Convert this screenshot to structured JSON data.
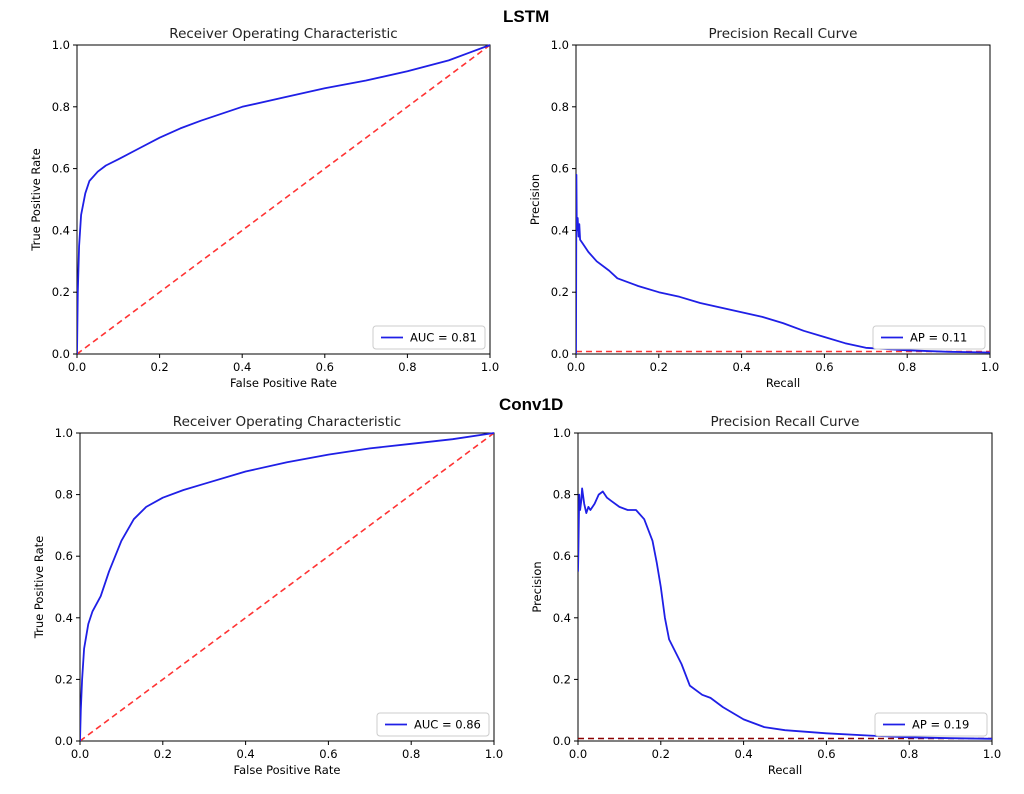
{
  "sections": [
    {
      "title": "LSTM"
    },
    {
      "title": "Conv1D"
    }
  ],
  "chart_data": [
    {
      "type": "line",
      "title": "Receiver Operating Characteristic",
      "xlabel": "False Positive Rate",
      "ylabel": "True Positive Rate",
      "xlim": [
        0,
        1
      ],
      "ylim": [
        0,
        1
      ],
      "xticks": [
        "0.0",
        "0.2",
        "0.4",
        "0.6",
        "0.8",
        "1.0"
      ],
      "yticks": [
        "0.0",
        "0.2",
        "0.4",
        "0.6",
        "0.8",
        "1.0"
      ],
      "legend": {
        "location": "lower-right",
        "entries": [
          "AUC = 0.81"
        ]
      },
      "series": [
        {
          "name": "AUC = 0.81",
          "color": "#1f1fe6",
          "style": "solid",
          "x": [
            0,
            0.002,
            0.005,
            0.01,
            0.02,
            0.03,
            0.05,
            0.07,
            0.1,
            0.15,
            0.2,
            0.25,
            0.3,
            0.4,
            0.5,
            0.6,
            0.7,
            0.8,
            0.9,
            0.95,
            1.0
          ],
          "y": [
            0,
            0.2,
            0.35,
            0.45,
            0.52,
            0.56,
            0.59,
            0.61,
            0.63,
            0.665,
            0.7,
            0.73,
            0.755,
            0.8,
            0.83,
            0.86,
            0.885,
            0.915,
            0.95,
            0.975,
            1.0
          ]
        },
        {
          "name": "chance",
          "color": "#ff3333",
          "style": "dashed",
          "x": [
            0,
            1
          ],
          "y": [
            0,
            1
          ]
        }
      ]
    },
    {
      "type": "line",
      "title": "Precision Recall Curve",
      "xlabel": "Recall",
      "ylabel": "Precision",
      "xlim": [
        0,
        1
      ],
      "ylim": [
        0,
        1
      ],
      "xticks": [
        "0.0",
        "0.2",
        "0.4",
        "0.6",
        "0.8",
        "1.0"
      ],
      "yticks": [
        "0.0",
        "0.2",
        "0.4",
        "0.6",
        "0.8",
        "1.0"
      ],
      "legend": {
        "location": "lower-right",
        "entries": [
          "AP = 0.11"
        ]
      },
      "series": [
        {
          "name": "AP = 0.11",
          "color": "#1f1fe6",
          "style": "solid",
          "x": [
            0,
            0.001,
            0.002,
            0.004,
            0.006,
            0.008,
            0.01,
            0.015,
            0.02,
            0.03,
            0.05,
            0.08,
            0.1,
            0.15,
            0.2,
            0.25,
            0.3,
            0.35,
            0.4,
            0.45,
            0.5,
            0.55,
            0.6,
            0.65,
            0.7,
            0.8,
            0.9,
            1.0
          ],
          "y": [
            0,
            0.58,
            0.4,
            0.44,
            0.38,
            0.42,
            0.37,
            0.36,
            0.35,
            0.33,
            0.3,
            0.27,
            0.245,
            0.22,
            0.2,
            0.185,
            0.165,
            0.15,
            0.135,
            0.12,
            0.1,
            0.075,
            0.055,
            0.035,
            0.02,
            0.012,
            0.007,
            0.005
          ]
        },
        {
          "name": "baseline",
          "color": "#ff3333",
          "style": "dashed",
          "x": [
            0,
            1
          ],
          "y": [
            0.008,
            0.008
          ]
        }
      ]
    },
    {
      "type": "line",
      "title": "Receiver Operating Characteristic",
      "xlabel": "False Positive Rate",
      "ylabel": "True Positive Rate",
      "xlim": [
        0,
        1
      ],
      "ylim": [
        0,
        1
      ],
      "xticks": [
        "0.0",
        "0.2",
        "0.4",
        "0.6",
        "0.8",
        "1.0"
      ],
      "yticks": [
        "0.0",
        "0.2",
        "0.4",
        "0.6",
        "0.8",
        "1.0"
      ],
      "legend": {
        "location": "lower-right",
        "entries": [
          "AUC = 0.86"
        ]
      },
      "series": [
        {
          "name": "AUC = 0.86",
          "color": "#1f1fe6",
          "style": "solid",
          "x": [
            0,
            0.002,
            0.005,
            0.01,
            0.02,
            0.03,
            0.05,
            0.07,
            0.1,
            0.13,
            0.16,
            0.2,
            0.25,
            0.3,
            0.4,
            0.5,
            0.6,
            0.7,
            0.8,
            0.9,
            1.0
          ],
          "y": [
            0,
            0.1,
            0.2,
            0.3,
            0.38,
            0.42,
            0.47,
            0.55,
            0.65,
            0.72,
            0.76,
            0.79,
            0.815,
            0.835,
            0.875,
            0.905,
            0.93,
            0.95,
            0.965,
            0.98,
            1.0
          ]
        },
        {
          "name": "chance",
          "color": "#ff3333",
          "style": "dashed",
          "x": [
            0,
            1
          ],
          "y": [
            0,
            1
          ]
        }
      ]
    },
    {
      "type": "line",
      "title": "Precision Recall Curve",
      "xlabel": "Recall",
      "ylabel": "Precision",
      "xlim": [
        0,
        1
      ],
      "ylim": [
        0,
        1
      ],
      "xticks": [
        "0.0",
        "0.2",
        "0.4",
        "0.6",
        "0.8",
        "1.0"
      ],
      "yticks": [
        "0.0",
        "0.2",
        "0.4",
        "0.6",
        "0.8",
        "1.0"
      ],
      "legend": {
        "location": "lower-right",
        "entries": [
          "AP = 0.19"
        ]
      },
      "series": [
        {
          "name": "AP = 0.19",
          "color": "#1f1fe6",
          "style": "solid",
          "x": [
            0,
            0.001,
            0.003,
            0.005,
            0.008,
            0.01,
            0.015,
            0.02,
            0.025,
            0.03,
            0.04,
            0.05,
            0.06,
            0.07,
            0.08,
            0.1,
            0.12,
            0.14,
            0.16,
            0.18,
            0.19,
            0.2,
            0.21,
            0.22,
            0.25,
            0.27,
            0.3,
            0.32,
            0.35,
            0.4,
            0.45,
            0.5,
            0.6,
            0.7,
            0.8,
            0.9,
            1.0
          ],
          "y": [
            0.55,
            0.62,
            0.8,
            0.75,
            0.78,
            0.82,
            0.77,
            0.74,
            0.76,
            0.75,
            0.77,
            0.8,
            0.81,
            0.79,
            0.78,
            0.76,
            0.75,
            0.75,
            0.72,
            0.65,
            0.58,
            0.5,
            0.4,
            0.33,
            0.25,
            0.18,
            0.15,
            0.14,
            0.11,
            0.07,
            0.045,
            0.035,
            0.025,
            0.018,
            0.012,
            0.009,
            0.007
          ]
        },
        {
          "name": "baseline",
          "color": "#8b0000",
          "style": "dashed",
          "x": [
            0,
            1
          ],
          "y": [
            0.008,
            0.008
          ]
        }
      ]
    }
  ]
}
